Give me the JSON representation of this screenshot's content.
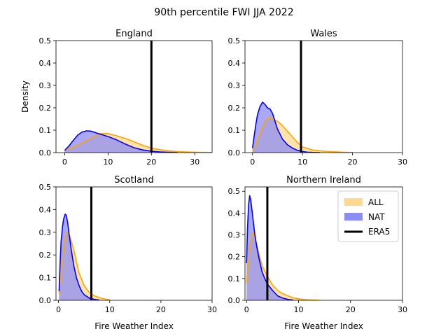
{
  "figure": {
    "suptitle": "90th percentile FWI JJA 2022"
  },
  "chart_data": [
    {
      "type": "area",
      "title": "England",
      "xlabel": "",
      "ylabel": "Density",
      "xlim": [
        -2,
        34
      ],
      "ylim": [
        0,
        0.5
      ],
      "xticks": [
        0,
        10,
        20,
        30
      ],
      "yticks": [
        0.0,
        0.1,
        0.2,
        0.3,
        0.4,
        0.5
      ],
      "era5": 20.0,
      "series": [
        {
          "name": "ALL",
          "color": "#ffa500",
          "fill": "#ffd990",
          "x": [
            0,
            2,
            4,
            6,
            8,
            10,
            12,
            14,
            16,
            18,
            20,
            22,
            24,
            26,
            28,
            30,
            32,
            34
          ],
          "y": [
            0.01,
            0.025,
            0.045,
            0.065,
            0.085,
            0.085,
            0.075,
            0.063,
            0.048,
            0.033,
            0.02,
            0.013,
            0.008,
            0.005,
            0.003,
            0.002,
            0.001,
            0.0005
          ]
        },
        {
          "name": "NAT",
          "color": "#0000ff",
          "fill": "#8c8cf5",
          "x": [
            0,
            1,
            2,
            3,
            4,
            5,
            6,
            7,
            8,
            10,
            12,
            14,
            16,
            18,
            20,
            22,
            24,
            26
          ],
          "y": [
            0.01,
            0.03,
            0.055,
            0.078,
            0.092,
            0.097,
            0.096,
            0.09,
            0.083,
            0.072,
            0.057,
            0.038,
            0.022,
            0.012,
            0.006,
            0.003,
            0.0015,
            0.0005
          ]
        }
      ]
    },
    {
      "type": "area",
      "title": "Wales",
      "xlabel": "",
      "ylabel": "",
      "xlim": [
        -1.5,
        30
      ],
      "ylim": [
        0,
        0.5
      ],
      "xticks": [
        0,
        10,
        20,
        30
      ],
      "yticks": [
        0.0,
        0.1,
        0.2,
        0.3,
        0.4,
        0.5
      ],
      "era5": 9.7,
      "series": [
        {
          "name": "ALL",
          "color": "#ffa500",
          "fill": "#ffd990",
          "x": [
            0,
            0.5,
            1,
            1.5,
            2,
            2.5,
            3,
            3.5,
            4,
            5,
            6,
            7,
            8,
            9,
            10,
            12,
            14,
            16,
            18,
            20
          ],
          "y": [
            0.01,
            0.03,
            0.06,
            0.09,
            0.115,
            0.14,
            0.155,
            0.155,
            0.15,
            0.14,
            0.12,
            0.095,
            0.07,
            0.045,
            0.025,
            0.012,
            0.007,
            0.004,
            0.002,
            0.0005
          ]
        },
        {
          "name": "NAT",
          "color": "#0000ff",
          "fill": "#8c8cf5",
          "x": [
            0,
            0.3,
            0.7,
            1,
            1.5,
            2,
            2.5,
            3,
            3.5,
            4,
            4.5,
            5,
            6,
            7,
            8,
            9,
            10,
            11,
            12,
            13.5
          ],
          "y": [
            0.02,
            0.07,
            0.13,
            0.17,
            0.205,
            0.225,
            0.215,
            0.2,
            0.195,
            0.175,
            0.14,
            0.105,
            0.06,
            0.035,
            0.02,
            0.01,
            0.005,
            0.002,
            0.001,
            0.0003
          ]
        }
      ]
    },
    {
      "type": "area",
      "title": "Scotland",
      "xlabel": "Fire Weather Index",
      "ylabel": "",
      "xlim": [
        -0.5,
        30
      ],
      "ylim": [
        0,
        0.5
      ],
      "xticks": [
        0,
        10,
        20,
        30
      ],
      "yticks": [
        0.0,
        0.1,
        0.2,
        0.3,
        0.4,
        0.5
      ],
      "era5": 6.4,
      "series": [
        {
          "name": "ALL",
          "color": "#ffa500",
          "fill": "#ffd990",
          "x": [
            0.1,
            0.4,
            0.7,
            1,
            1.3,
            1.6,
            2,
            2.5,
            3,
            3.5,
            4,
            5,
            6,
            7,
            8,
            9,
            10
          ],
          "y": [
            0.03,
            0.1,
            0.18,
            0.24,
            0.28,
            0.3,
            0.295,
            0.26,
            0.22,
            0.17,
            0.12,
            0.065,
            0.035,
            0.02,
            0.012,
            0.006,
            0.002
          ]
        },
        {
          "name": "NAT",
          "color": "#0000ff",
          "fill": "#8c8cf5",
          "x": [
            0.1,
            0.3,
            0.5,
            0.8,
            1,
            1.3,
            1.5,
            1.8,
            2,
            2.5,
            3,
            3.5,
            4,
            4.5,
            5,
            6,
            7,
            8
          ],
          "y": [
            0.04,
            0.16,
            0.26,
            0.33,
            0.36,
            0.38,
            0.375,
            0.34,
            0.3,
            0.22,
            0.15,
            0.1,
            0.065,
            0.04,
            0.025,
            0.01,
            0.004,
            0.001
          ]
        }
      ]
    },
    {
      "type": "area",
      "title": "Northern Ireland",
      "xlabel": "Fire Weather Index",
      "ylabel": "",
      "xlim": [
        -0.3,
        30
      ],
      "ylim": [
        0,
        0.52
      ],
      "xticks": [
        0,
        10,
        20,
        30
      ],
      "yticks": [
        0.0,
        0.1,
        0.2,
        0.3,
        0.4,
        0.5
      ],
      "era5": 4.0,
      "series": [
        {
          "name": "ALL",
          "color": "#ffa500",
          "fill": "#ffd990",
          "x": [
            0,
            0.3,
            0.6,
            1,
            1.3,
            1.6,
            2,
            2.5,
            3,
            4,
            5,
            6,
            7,
            8,
            9,
            10,
            11,
            12,
            13,
            14
          ],
          "y": [
            0.08,
            0.17,
            0.25,
            0.3,
            0.31,
            0.29,
            0.25,
            0.2,
            0.16,
            0.11,
            0.07,
            0.045,
            0.03,
            0.02,
            0.012,
            0.007,
            0.004,
            0.002,
            0.001,
            0.0003
          ]
        },
        {
          "name": "NAT",
          "color": "#0000ff",
          "fill": "#8c8cf5",
          "x": [
            0,
            0.2,
            0.4,
            0.6,
            0.8,
            1,
            1.3,
            1.6,
            2,
            2.5,
            3,
            3.5,
            4,
            5,
            6,
            7,
            8,
            9
          ],
          "y": [
            0.17,
            0.34,
            0.44,
            0.48,
            0.46,
            0.42,
            0.36,
            0.3,
            0.24,
            0.18,
            0.13,
            0.1,
            0.075,
            0.045,
            0.02,
            0.01,
            0.004,
            0.001
          ]
        }
      ]
    }
  ],
  "legend": {
    "placement": "upper-right",
    "entries": [
      {
        "label": "ALL",
        "type": "patch",
        "color": "#ffd990"
      },
      {
        "label": "NAT",
        "type": "patch",
        "color": "#8c8cf5"
      },
      {
        "label": "ERA5",
        "type": "line",
        "color": "#000000"
      }
    ]
  }
}
